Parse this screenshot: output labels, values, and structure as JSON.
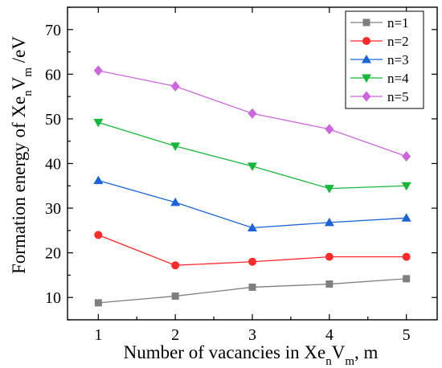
{
  "chart_data": {
    "type": "line",
    "title": "",
    "xlabel_parts": {
      "text": "Number of vacancies in Xe",
      "sub1": "n",
      "mid": "V",
      "sub2": "m",
      "tail": ",   m"
    },
    "ylabel_parts": {
      "text": "Formation energy of  Xe",
      "sub1": "n",
      "mid": "V",
      "sub2": "m",
      "tail": " /eV"
    },
    "x": [
      1,
      2,
      3,
      4,
      5
    ],
    "xlim": [
      0.6,
      5.4
    ],
    "ylim": [
      5,
      75
    ],
    "xticks": [
      "1",
      "2",
      "3",
      "4",
      "5"
    ],
    "yticks": [
      "10",
      "20",
      "30",
      "40",
      "50",
      "60",
      "70"
    ],
    "legend_position": "top-right",
    "series": [
      {
        "name": "n=1",
        "color": "#7f7f7f",
        "marker": "square",
        "values": [
          8.8,
          10.3,
          12.3,
          13.0,
          14.2
        ]
      },
      {
        "name": "n=2",
        "color": "#ff2a2a",
        "marker": "circle",
        "values": [
          24.0,
          17.2,
          18.0,
          19.1,
          19.1
        ]
      },
      {
        "name": "n=3",
        "color": "#1a64d8",
        "marker": "triangle-up",
        "values": [
          36.2,
          31.3,
          25.6,
          26.8,
          27.8
        ]
      },
      {
        "name": "n=4",
        "color": "#16b83a",
        "marker": "triangle-down",
        "values": [
          49.2,
          43.9,
          39.4,
          34.4,
          35.0
        ]
      },
      {
        "name": "n=5",
        "color": "#cc66dd",
        "marker": "diamond",
        "values": [
          60.8,
          57.3,
          51.2,
          47.7,
          41.6
        ]
      }
    ]
  }
}
